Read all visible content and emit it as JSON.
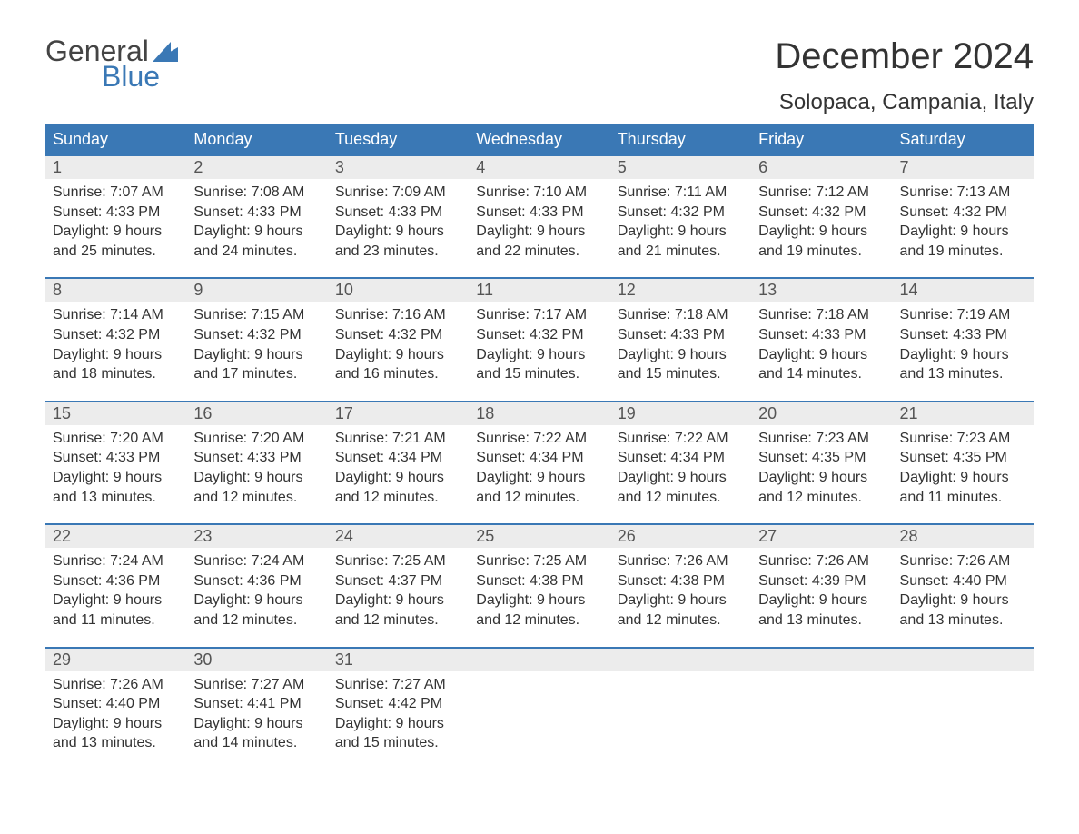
{
  "logo": {
    "text_top": "General",
    "text_bottom": "Blue",
    "flag_color": "#3a78b5"
  },
  "title": "December 2024",
  "location": "Solopaca, Campania, Italy",
  "colors": {
    "header_bg": "#3a78b5",
    "header_fg": "#ffffff",
    "daybar_bg": "#ececec",
    "border": "#3a78b5"
  },
  "weekdays": [
    "Sunday",
    "Monday",
    "Tuesday",
    "Wednesday",
    "Thursday",
    "Friday",
    "Saturday"
  ],
  "weeks": [
    [
      {
        "n": "1",
        "sr": "7:07 AM",
        "ss": "4:33 PM",
        "dl": "9 hours and 25 minutes."
      },
      {
        "n": "2",
        "sr": "7:08 AM",
        "ss": "4:33 PM",
        "dl": "9 hours and 24 minutes."
      },
      {
        "n": "3",
        "sr": "7:09 AM",
        "ss": "4:33 PM",
        "dl": "9 hours and 23 minutes."
      },
      {
        "n": "4",
        "sr": "7:10 AM",
        "ss": "4:33 PM",
        "dl": "9 hours and 22 minutes."
      },
      {
        "n": "5",
        "sr": "7:11 AM",
        "ss": "4:32 PM",
        "dl": "9 hours and 21 minutes."
      },
      {
        "n": "6",
        "sr": "7:12 AM",
        "ss": "4:32 PM",
        "dl": "9 hours and 19 minutes."
      },
      {
        "n": "7",
        "sr": "7:13 AM",
        "ss": "4:32 PM",
        "dl": "9 hours and 19 minutes."
      }
    ],
    [
      {
        "n": "8",
        "sr": "7:14 AM",
        "ss": "4:32 PM",
        "dl": "9 hours and 18 minutes."
      },
      {
        "n": "9",
        "sr": "7:15 AM",
        "ss": "4:32 PM",
        "dl": "9 hours and 17 minutes."
      },
      {
        "n": "10",
        "sr": "7:16 AM",
        "ss": "4:32 PM",
        "dl": "9 hours and 16 minutes."
      },
      {
        "n": "11",
        "sr": "7:17 AM",
        "ss": "4:32 PM",
        "dl": "9 hours and 15 minutes."
      },
      {
        "n": "12",
        "sr": "7:18 AM",
        "ss": "4:33 PM",
        "dl": "9 hours and 15 minutes."
      },
      {
        "n": "13",
        "sr": "7:18 AM",
        "ss": "4:33 PM",
        "dl": "9 hours and 14 minutes."
      },
      {
        "n": "14",
        "sr": "7:19 AM",
        "ss": "4:33 PM",
        "dl": "9 hours and 13 minutes."
      }
    ],
    [
      {
        "n": "15",
        "sr": "7:20 AM",
        "ss": "4:33 PM",
        "dl": "9 hours and 13 minutes."
      },
      {
        "n": "16",
        "sr": "7:20 AM",
        "ss": "4:33 PM",
        "dl": "9 hours and 12 minutes."
      },
      {
        "n": "17",
        "sr": "7:21 AM",
        "ss": "4:34 PM",
        "dl": "9 hours and 12 minutes."
      },
      {
        "n": "18",
        "sr": "7:22 AM",
        "ss": "4:34 PM",
        "dl": "9 hours and 12 minutes."
      },
      {
        "n": "19",
        "sr": "7:22 AM",
        "ss": "4:34 PM",
        "dl": "9 hours and 12 minutes."
      },
      {
        "n": "20",
        "sr": "7:23 AM",
        "ss": "4:35 PM",
        "dl": "9 hours and 12 minutes."
      },
      {
        "n": "21",
        "sr": "7:23 AM",
        "ss": "4:35 PM",
        "dl": "9 hours and 11 minutes."
      }
    ],
    [
      {
        "n": "22",
        "sr": "7:24 AM",
        "ss": "4:36 PM",
        "dl": "9 hours and 11 minutes."
      },
      {
        "n": "23",
        "sr": "7:24 AM",
        "ss": "4:36 PM",
        "dl": "9 hours and 12 minutes."
      },
      {
        "n": "24",
        "sr": "7:25 AM",
        "ss": "4:37 PM",
        "dl": "9 hours and 12 minutes."
      },
      {
        "n": "25",
        "sr": "7:25 AM",
        "ss": "4:38 PM",
        "dl": "9 hours and 12 minutes."
      },
      {
        "n": "26",
        "sr": "7:26 AM",
        "ss": "4:38 PM",
        "dl": "9 hours and 12 minutes."
      },
      {
        "n": "27",
        "sr": "7:26 AM",
        "ss": "4:39 PM",
        "dl": "9 hours and 13 minutes."
      },
      {
        "n": "28",
        "sr": "7:26 AM",
        "ss": "4:40 PM",
        "dl": "9 hours and 13 minutes."
      }
    ],
    [
      {
        "n": "29",
        "sr": "7:26 AM",
        "ss": "4:40 PM",
        "dl": "9 hours and 13 minutes."
      },
      {
        "n": "30",
        "sr": "7:27 AM",
        "ss": "4:41 PM",
        "dl": "9 hours and 14 minutes."
      },
      {
        "n": "31",
        "sr": "7:27 AM",
        "ss": "4:42 PM",
        "dl": "9 hours and 15 minutes."
      },
      null,
      null,
      null,
      null
    ]
  ],
  "labels": {
    "sunrise": "Sunrise: ",
    "sunset": "Sunset: ",
    "daylight": "Daylight: "
  }
}
